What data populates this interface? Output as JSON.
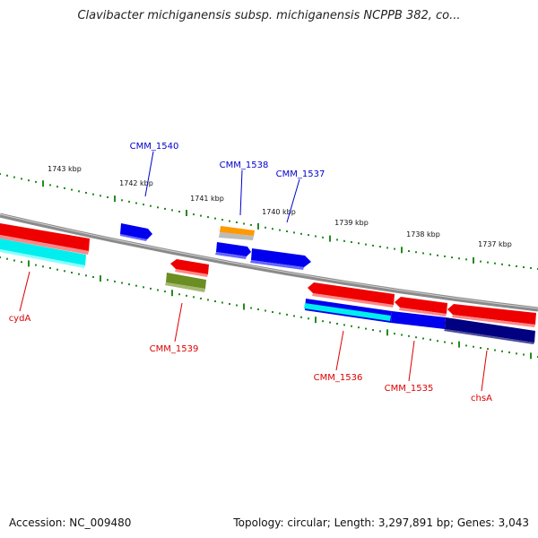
{
  "title": "Clavibacter michiganensis subsp. michiganensis NCPPB 382, co...",
  "footer": {
    "accession": "Accession: NC_009480",
    "topology": "Topology: circular; Length: 3,297,891 bp; Genes: 3,043"
  },
  "colors": {
    "backbone": "#8a8a8a",
    "forward_gene": "#0000ee",
    "reverse_gene": "#ee0000",
    "orange_gene": "#ff9900",
    "cyan_gene": "#00eeee",
    "olive_gene": "#6b8e23",
    "navy_gene": "#000080",
    "tick": "#228b22"
  },
  "scale_labels": [
    "1743 kbp",
    "1742 kbp",
    "1741 kbp",
    "1740 kbp",
    "1739 kbp",
    "1738 kbp",
    "1737 kbp"
  ],
  "gene_labels": {
    "forward": [
      "CMM_1540",
      "CMM_1538",
      "CMM_1537"
    ],
    "reverse": [
      "cydA",
      "CMM_1539",
      "CMM_1536",
      "CMM_1535",
      "chsA"
    ]
  }
}
